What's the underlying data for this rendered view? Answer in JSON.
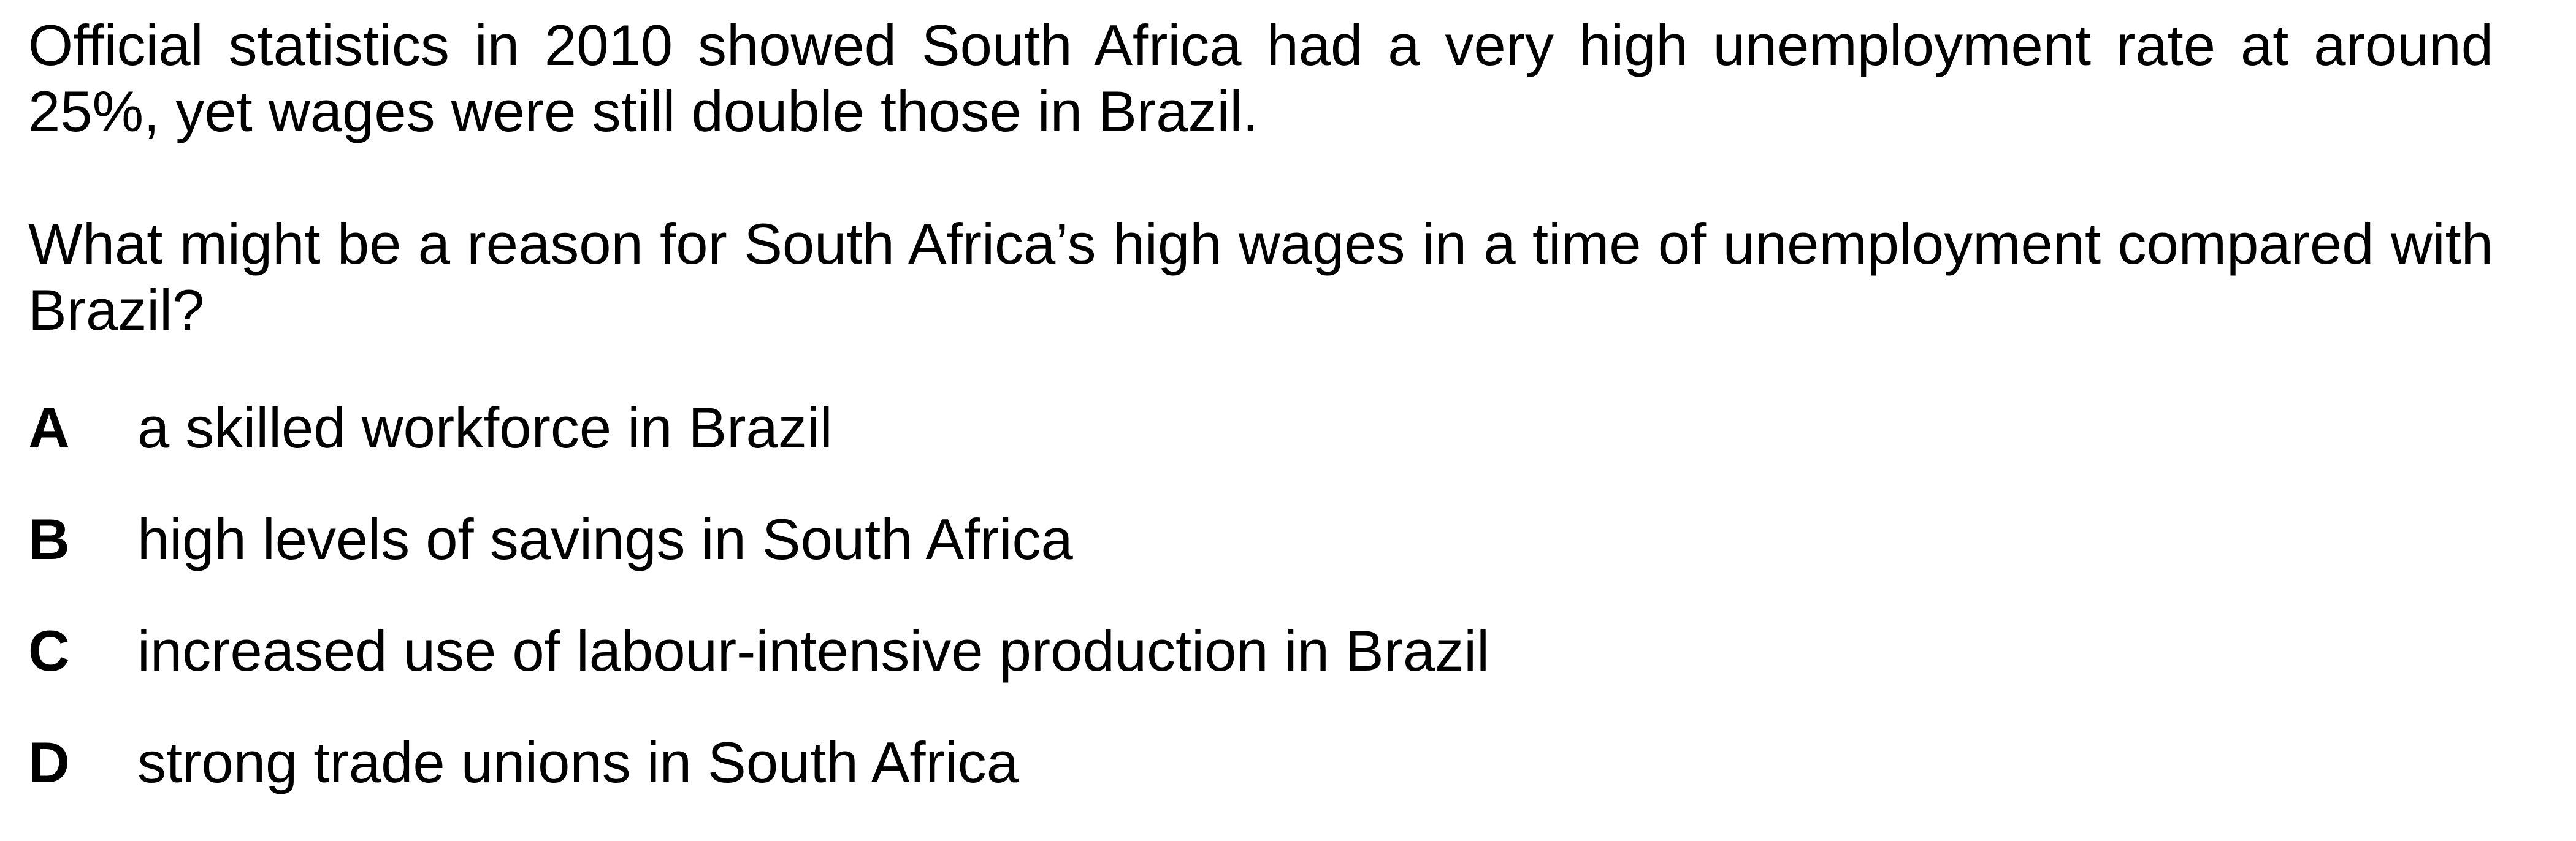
{
  "question": {
    "context": "Official statistics in 2010 showed South Africa had a very high unemployment rate at around 25%, yet wages were still double those in Brazil.",
    "prompt": "What might be a reason for South Africa’s high wages in a time of unemployment compared with Brazil?"
  },
  "options": [
    {
      "letter": "A",
      "text": "a skilled workforce in Brazil"
    },
    {
      "letter": "B",
      "text": "high levels of savings in South Africa"
    },
    {
      "letter": "C",
      "text": "increased use of labour-intensive production in Brazil"
    },
    {
      "letter": "D",
      "text": "strong trade unions in South Africa"
    }
  ]
}
